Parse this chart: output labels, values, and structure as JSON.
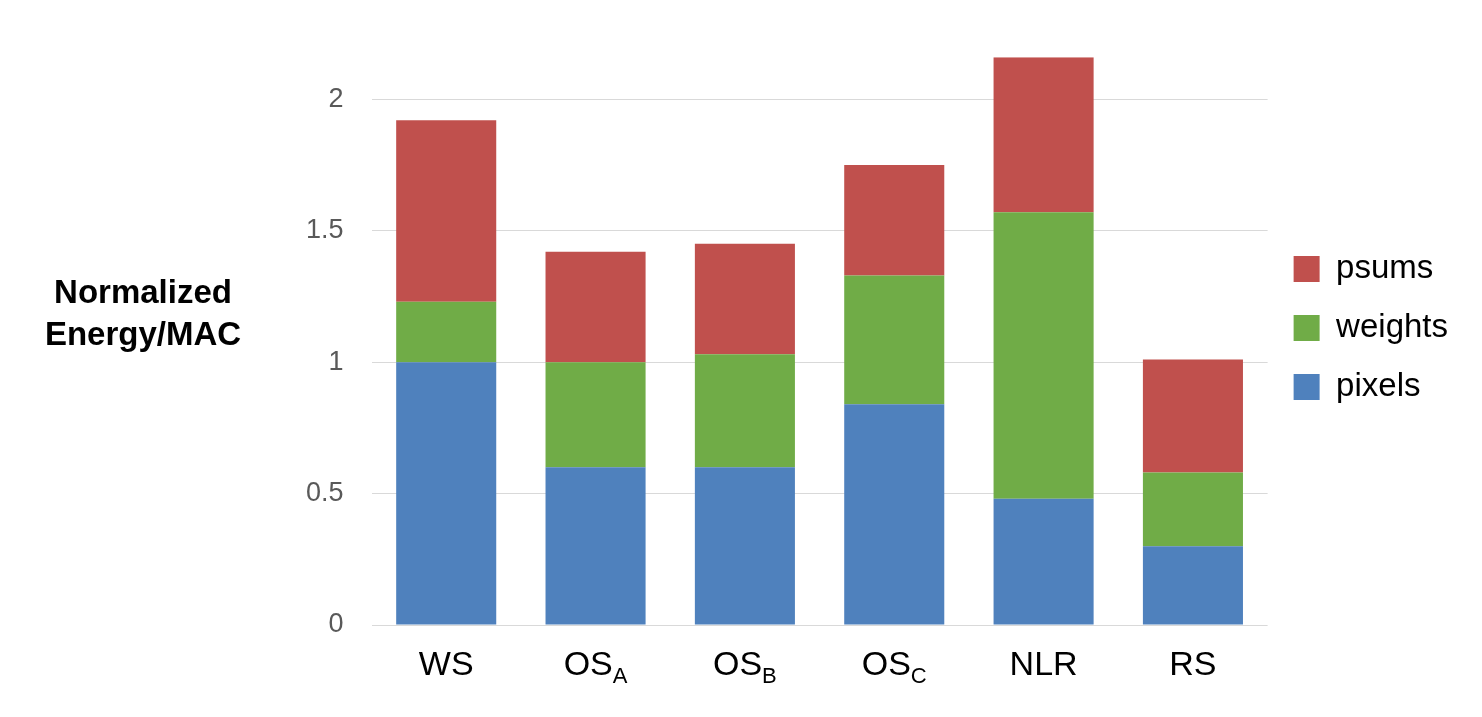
{
  "chart_data": {
    "type": "bar",
    "ylabel": "Normalized Energy/MAC",
    "categories": [
      "WS",
      "OS$_{A}$",
      "OS$_{B}$",
      "OS$_{C}$",
      "NLR",
      "RS"
    ],
    "stacked": true,
    "series": [
      {
        "name": "pixels",
        "color": "#4f81bd",
        "values": [
          1.0,
          0.6,
          0.6,
          0.84,
          0.48,
          0.3
        ]
      },
      {
        "name": "weights",
        "color": "#70ac47",
        "values": [
          0.23,
          0.4,
          0.43,
          0.49,
          1.09,
          0.28
        ]
      },
      {
        "name": "psums",
        "color": "#c0504d",
        "values": [
          0.69,
          0.42,
          0.42,
          0.42,
          0.59,
          0.43
        ]
      }
    ],
    "ylim": [
      0,
      2.16
    ],
    "yticks": [
      0,
      0.5,
      1,
      1.5,
      2
    ],
    "grid": "y",
    "legend": "right"
  }
}
